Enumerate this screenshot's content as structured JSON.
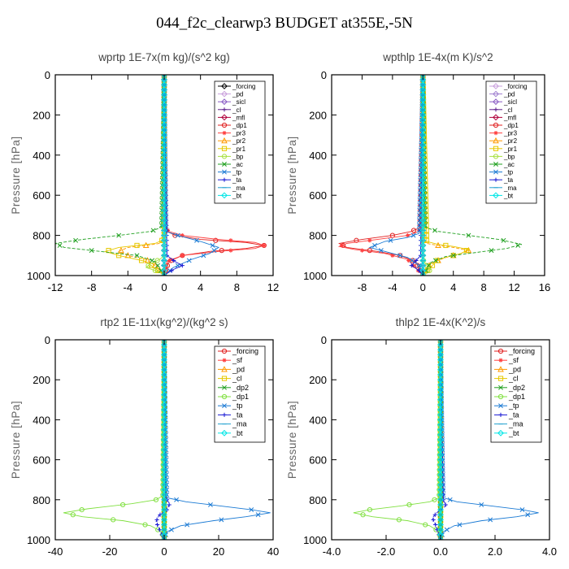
{
  "title": "044_f2c_clearwp3  BUDGET at355E,-5N",
  "chart_data": [
    {
      "type": "line",
      "title": "wprtp  1E-7x(m kg)/(s^2 kg)",
      "ylabel": "Pressure [hPa]",
      "xlim": [
        -12,
        12
      ],
      "ylim": [
        1000,
        0
      ],
      "xticks": [
        -12,
        -8,
        -4,
        0,
        4,
        8,
        12
      ],
      "yticks": [
        0,
        200,
        400,
        600,
        800,
        1000
      ],
      "legend": "top-right",
      "series": [
        {
          "name": "_forcing",
          "color": "#000000",
          "marker": "diamond",
          "x": [
            0,
            0
          ],
          "y": [
            0,
            1000
          ]
        },
        {
          "name": "_pd",
          "color": "#c9a0dc",
          "marker": "diamond",
          "x": [
            0,
            0
          ],
          "y": [
            0,
            1000
          ]
        },
        {
          "name": "_sicl",
          "color": "#8a5cc4",
          "marker": "diamond",
          "x": [
            0,
            0
          ],
          "y": [
            0,
            1000
          ]
        },
        {
          "name": "_cl",
          "color": "#5a1a8a",
          "marker": "plus",
          "x": [
            0,
            0
          ],
          "y": [
            0,
            1000
          ]
        },
        {
          "name": "_mfl",
          "color": "#b0003a",
          "marker": "diamond",
          "x": [
            0,
            0
          ],
          "y": [
            0,
            1000
          ]
        },
        {
          "name": "_dp1",
          "color": "#e02020",
          "marker": "circle",
          "x": [
            0,
            0.1,
            0.3,
            1.2,
            4,
            9,
            11,
            9,
            5,
            2,
            0.5,
            0
          ],
          "y": [
            0,
            760,
            780,
            800,
            820,
            835,
            850,
            865,
            880,
            900,
            930,
            1000
          ]
        },
        {
          "name": "_pr3",
          "color": "#ff4040",
          "marker": "star",
          "x": [
            0,
            0.1,
            0.5,
            2,
            6,
            10,
            11,
            10,
            6,
            2,
            0.3,
            0
          ],
          "y": [
            0,
            760,
            780,
            800,
            820,
            835,
            850,
            865,
            880,
            900,
            930,
            1000
          ]
        },
        {
          "name": "_pr2",
          "color": "#ff9900",
          "marker": "triangle",
          "x": [
            0,
            0,
            -0.5,
            -2,
            -4,
            -5,
            -4,
            -2,
            -1,
            0
          ],
          "y": [
            0,
            820,
            840,
            850,
            860,
            880,
            900,
            920,
            950,
            1000
          ]
        },
        {
          "name": "_pr1",
          "color": "#e6c800",
          "marker": "square",
          "x": [
            0,
            0,
            -1,
            -3,
            -5,
            -6.5,
            -5,
            -2,
            0
          ],
          "y": [
            0,
            820,
            840,
            850,
            860,
            880,
            900,
            930,
            1000
          ]
        },
        {
          "name": "_bp",
          "color": "#a8e040",
          "marker": "circle",
          "x": [
            0,
            0,
            -0.5,
            -1.5,
            -2,
            -1,
            -0.3,
            0
          ],
          "y": [
            0,
            900,
            920,
            940,
            960,
            975,
            990,
            1000
          ]
        },
        {
          "name": "_ac",
          "color": "#20a020",
          "marker": "cross",
          "x": [
            0,
            -0.3,
            -1.5,
            -5,
            -9,
            -12,
            -11,
            -7,
            -3,
            -1,
            0
          ],
          "y": [
            0,
            760,
            780,
            800,
            820,
            840,
            860,
            880,
            900,
            930,
            1000
          ]
        },
        {
          "name": "_tp",
          "color": "#1a7ad4",
          "marker": "cross",
          "x": [
            0,
            0.2,
            1.5,
            4,
            6,
            5,
            3,
            1,
            0
          ],
          "y": [
            0,
            780,
            800,
            830,
            860,
            890,
            920,
            960,
            1000
          ]
        },
        {
          "name": "_ta",
          "color": "#1a1ad4",
          "marker": "plus",
          "x": [
            0,
            0.3,
            1.2,
            2,
            1,
            0.3,
            0
          ],
          "y": [
            0,
            900,
            930,
            950,
            970,
            990,
            1000
          ]
        },
        {
          "name": "_ma",
          "color": "#20a0d0",
          "marker": "dash",
          "x": [
            0,
            0,
            0
          ],
          "y": [
            0,
            500,
            1000
          ]
        },
        {
          "name": "_bt",
          "color": "#00e6e6",
          "marker": "diamond",
          "x": [
            0,
            0
          ],
          "y": [
            0,
            1000
          ]
        }
      ]
    },
    {
      "type": "line",
      "title": "wpthlp  1E-4x(m K)/s^2",
      "ylabel": "Pressure [hPa]",
      "xlim": [
        -12,
        16
      ],
      "ylim": [
        1000,
        0
      ],
      "xticks": [
        -12,
        -8,
        -4,
        0,
        4,
        8,
        12,
        16
      ],
      "xtick_labels": [
        "",
        "-8",
        "-4",
        "0",
        "4",
        "8",
        "12",
        "16"
      ],
      "yticks": [
        0,
        200,
        400,
        600,
        800,
        1000
      ],
      "legend": "top-right",
      "series": [
        {
          "name": "_forcing",
          "color": "#c9a0dc",
          "marker": "diamond",
          "x": [
            0,
            0
          ],
          "y": [
            0,
            1000
          ]
        },
        {
          "name": "_pd",
          "color": "#a080d0",
          "marker": "diamond",
          "x": [
            0,
            0
          ],
          "y": [
            0,
            1000
          ]
        },
        {
          "name": "_sicl",
          "color": "#8a5cc4",
          "marker": "diamond",
          "x": [
            0,
            0
          ],
          "y": [
            0,
            1000
          ]
        },
        {
          "name": "_cl",
          "color": "#5a1a8a",
          "marker": "plus",
          "x": [
            0,
            0
          ],
          "y": [
            0,
            1000
          ]
        },
        {
          "name": "_mfl",
          "color": "#b0003a",
          "marker": "diamond",
          "x": [
            0,
            0
          ],
          "y": [
            0,
            1000
          ]
        },
        {
          "name": "_dp1",
          "color": "#e02020",
          "marker": "circle",
          "x": [
            0,
            -0.3,
            -1.5,
            -4,
            -8,
            -11,
            -10,
            -6,
            -3,
            -1,
            0
          ],
          "y": [
            0,
            760,
            780,
            800,
            820,
            840,
            860,
            880,
            900,
            930,
            1000
          ]
        },
        {
          "name": "_pr3",
          "color": "#ff4040",
          "marker": "star",
          "x": [
            0,
            -0.5,
            -2,
            -6,
            -10,
            -11,
            -9,
            -5,
            -2,
            0
          ],
          "y": [
            0,
            780,
            800,
            820,
            840,
            855,
            870,
            890,
            920,
            1000
          ]
        },
        {
          "name": "_pr2",
          "color": "#ff9900",
          "marker": "triangle",
          "x": [
            0,
            0,
            0.5,
            2,
            4,
            6,
            5,
            3,
            1,
            0
          ],
          "y": [
            0,
            820,
            840,
            850,
            860,
            875,
            890,
            910,
            940,
            1000
          ]
        },
        {
          "name": "_pr1",
          "color": "#e6c800",
          "marker": "square",
          "x": [
            0,
            0.5,
            2,
            4,
            6,
            5,
            2,
            0
          ],
          "y": [
            0,
            830,
            845,
            855,
            870,
            890,
            920,
            1000
          ]
        },
        {
          "name": "_bp",
          "color": "#a8e040",
          "marker": "circle",
          "x": [
            0,
            0,
            0.5,
            1,
            0.5,
            0
          ],
          "y": [
            0,
            920,
            950,
            970,
            990,
            1000
          ]
        },
        {
          "name": "_ac",
          "color": "#20a020",
          "marker": "cross",
          "x": [
            0,
            0.3,
            2,
            6,
            10,
            13,
            11,
            7,
            3,
            1,
            0
          ],
          "y": [
            0,
            760,
            780,
            800,
            820,
            845,
            865,
            885,
            905,
            935,
            1000
          ]
        },
        {
          "name": "_tp",
          "color": "#1a7ad4",
          "marker": "cross",
          "x": [
            0,
            -0.5,
            -2,
            -5,
            -7,
            -5,
            -2,
            -0.5,
            0
          ],
          "y": [
            0,
            790,
            810,
            830,
            860,
            880,
            910,
            950,
            1000
          ]
        },
        {
          "name": "_ta",
          "color": "#1a1ad4",
          "marker": "plus",
          "x": [
            0,
            -0.3,
            -1,
            -1.5,
            -0.5,
            0
          ],
          "y": [
            0,
            900,
            930,
            950,
            975,
            1000
          ]
        },
        {
          "name": "_ma",
          "color": "#20a0d0",
          "marker": "dash",
          "x": [
            0,
            0,
            0
          ],
          "y": [
            0,
            500,
            1000
          ]
        },
        {
          "name": "_bt",
          "color": "#00e6e6",
          "marker": "diamond",
          "x": [
            0,
            0
          ],
          "y": [
            0,
            1000
          ]
        }
      ]
    },
    {
      "type": "line",
      "title": "rtp2  1E-11x(kg^2)/(kg^2 s)",
      "ylabel": "Pressure [hPa]",
      "xlim": [
        -40,
        40
      ],
      "ylim": [
        1000,
        0
      ],
      "xticks": [
        -40,
        -20,
        0,
        20,
        40
      ],
      "yticks": [
        0,
        200,
        400,
        600,
        800,
        1000
      ],
      "legend": "top-right",
      "series": [
        {
          "name": "_forcing",
          "color": "#e02020",
          "marker": "circle",
          "x": [
            0,
            0
          ],
          "y": [
            0,
            1000
          ]
        },
        {
          "name": "_sf",
          "color": "#ff4040",
          "marker": "star",
          "x": [
            0,
            0
          ],
          "y": [
            0,
            1000
          ]
        },
        {
          "name": "_pd",
          "color": "#ff9900",
          "marker": "triangle",
          "x": [
            0,
            0
          ],
          "y": [
            0,
            1000
          ]
        },
        {
          "name": "_cl",
          "color": "#e6c800",
          "marker": "square",
          "x": [
            0,
            0
          ],
          "y": [
            0,
            1000
          ]
        },
        {
          "name": "_dp2",
          "color": "#20a020",
          "marker": "cross",
          "x": [
            0,
            0,
            0,
            0
          ],
          "y": [
            0,
            500,
            800,
            1000
          ]
        },
        {
          "name": "_dp1",
          "color": "#80e040",
          "marker": "circle",
          "x": [
            0,
            -0.5,
            -3,
            -12,
            -28,
            -37,
            -30,
            -15,
            -5,
            -1,
            0
          ],
          "y": [
            0,
            780,
            800,
            820,
            845,
            865,
            885,
            905,
            930,
            960,
            1000
          ]
        },
        {
          "name": "_tp",
          "color": "#1a7ad4",
          "marker": "cross",
          "x": [
            0,
            1,
            8,
            20,
            32,
            39,
            30,
            18,
            6,
            1,
            0
          ],
          "y": [
            0,
            790,
            810,
            830,
            850,
            865,
            885,
            905,
            930,
            960,
            1000
          ]
        },
        {
          "name": "_ta",
          "color": "#1a1ad4",
          "marker": "plus",
          "x": [
            0,
            0.5,
            2,
            1,
            -2,
            -3,
            -2,
            -1,
            0
          ],
          "y": [
            0,
            790,
            820,
            850,
            880,
            910,
            940,
            970,
            1000
          ]
        },
        {
          "name": "_ma",
          "color": "#20a0d0",
          "marker": "dash",
          "x": [
            0,
            0,
            0
          ],
          "y": [
            0,
            500,
            1000
          ]
        },
        {
          "name": "_bt",
          "color": "#00e6e6",
          "marker": "diamond",
          "x": [
            0,
            0
          ],
          "y": [
            0,
            1000
          ]
        }
      ]
    },
    {
      "type": "line",
      "title": "thlp2  1E-4x(K^2)/s",
      "ylabel": "Pressure [hPa]",
      "xlim": [
        -4,
        4
      ],
      "ylim": [
        1000,
        0
      ],
      "xticks": [
        -4,
        -2,
        0,
        2,
        4
      ],
      "xtick_labels": [
        "-4.0",
        "-2.0",
        "0.0",
        "2.0",
        "4.0"
      ],
      "yticks": [
        0,
        200,
        400,
        600,
        800,
        1000
      ],
      "legend": "top-right",
      "series": [
        {
          "name": "_forcing",
          "color": "#e02020",
          "marker": "circle",
          "x": [
            0,
            0
          ],
          "y": [
            0,
            1000
          ]
        },
        {
          "name": "_sf",
          "color": "#ff4040",
          "marker": "star",
          "x": [
            0,
            0
          ],
          "y": [
            0,
            1000
          ]
        },
        {
          "name": "_pd",
          "color": "#ff9900",
          "marker": "triangle",
          "x": [
            0,
            0
          ],
          "y": [
            0,
            1000
          ]
        },
        {
          "name": "_cl",
          "color": "#e6c800",
          "marker": "square",
          "x": [
            0,
            0
          ],
          "y": [
            0,
            1000
          ]
        },
        {
          "name": "_dp2",
          "color": "#20a020",
          "marker": "cross",
          "x": [
            0,
            0,
            0,
            0
          ],
          "y": [
            0,
            500,
            800,
            1000
          ]
        },
        {
          "name": "_dp1",
          "color": "#80e040",
          "marker": "circle",
          "x": [
            0,
            -0.05,
            -0.4,
            -1.4,
            -2.6,
            -3.2,
            -2.5,
            -1.2,
            -0.4,
            -0.05,
            0
          ],
          "y": [
            0,
            790,
            810,
            830,
            850,
            865,
            885,
            905,
            930,
            960,
            1000
          ]
        },
        {
          "name": "_tp",
          "color": "#1a7ad4",
          "marker": "cross",
          "x": [
            0,
            0.1,
            0.6,
            1.8,
            3.0,
            3.6,
            2.8,
            1.5,
            0.5,
            0.1,
            0
          ],
          "y": [
            0,
            790,
            810,
            830,
            850,
            865,
            885,
            905,
            930,
            960,
            1000
          ]
        },
        {
          "name": "_ta",
          "color": "#1a1ad4",
          "marker": "plus",
          "x": [
            0,
            0.1,
            0.2,
            -0.1,
            -0.3,
            -0.2,
            -0.1,
            0
          ],
          "y": [
            0,
            800,
            830,
            860,
            890,
            920,
            960,
            1000
          ]
        },
        {
          "name": "_ma",
          "color": "#20a0d0",
          "marker": "dash",
          "x": [
            0,
            0,
            0
          ],
          "y": [
            0,
            500,
            1000
          ]
        },
        {
          "name": "_bt",
          "color": "#00e6e6",
          "marker": "diamond",
          "x": [
            0,
            0
          ],
          "y": [
            0,
            1000
          ]
        }
      ]
    }
  ]
}
